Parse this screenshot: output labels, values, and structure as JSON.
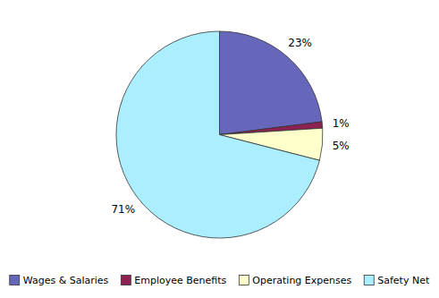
{
  "chart_data": {
    "type": "pie",
    "categories": [
      "Wages & Salaries",
      "Employee Benefits",
      "Operating Expenses",
      "Safety Net"
    ],
    "values": [
      23,
      1,
      5,
      71
    ],
    "value_labels": [
      "23%",
      "1%",
      "5%",
      "71%"
    ],
    "colors": [
      "#6666bb",
      "#8b2252",
      "#ffffcc",
      "#aaeeff"
    ],
    "data_labels": true,
    "legend": "bottom"
  }
}
